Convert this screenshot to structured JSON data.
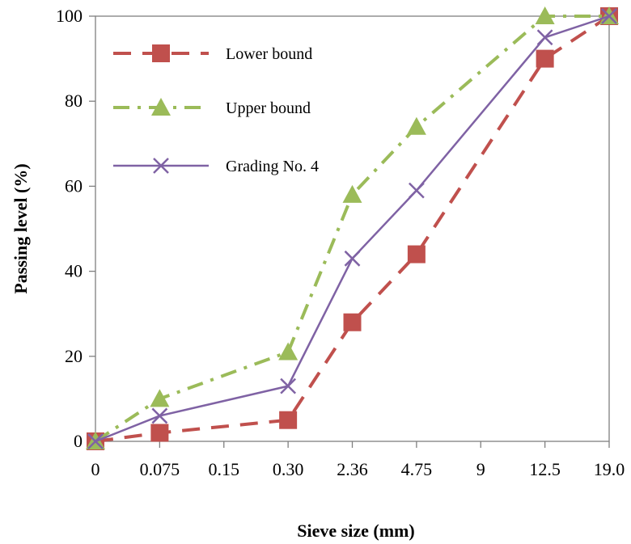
{
  "chart_data": {
    "type": "line",
    "xlabel": "Sieve size (mm)",
    "ylabel": "Passing level (%)",
    "x": [
      "0",
      "0.075",
      "0.15",
      "0.30",
      "2.36",
      "4.75",
      "9",
      "12.5",
      "19.0"
    ],
    "ylim": [
      0,
      100
    ],
    "yticks": [
      "0",
      "20",
      "40",
      "60",
      "80",
      "100"
    ],
    "grid": false,
    "legend_position": "top-left",
    "series": [
      {
        "name": "Lower bound",
        "color": "#c0504d",
        "line_style": "dashed",
        "marker": "square",
        "points": [
          {
            "x": "0",
            "y": 0
          },
          {
            "x": "0.075",
            "y": 2
          },
          {
            "x": "0.30",
            "y": 5
          },
          {
            "x": "2.36",
            "y": 28
          },
          {
            "x": "4.75",
            "y": 44
          },
          {
            "x": "12.5",
            "y": 90
          },
          {
            "x": "19.0",
            "y": 100
          }
        ]
      },
      {
        "name": "Upper bound",
        "color": "#9bbb59",
        "line_style": "dash-dot",
        "marker": "triangle",
        "points": [
          {
            "x": "0",
            "y": 0
          },
          {
            "x": "0.075",
            "y": 10
          },
          {
            "x": "0.30",
            "y": 21
          },
          {
            "x": "2.36",
            "y": 58
          },
          {
            "x": "4.75",
            "y": 74
          },
          {
            "x": "12.5",
            "y": 100
          },
          {
            "x": "19.0",
            "y": 100
          }
        ]
      },
      {
        "name": "Grading No. 4",
        "color": "#7f62a4",
        "line_style": "solid",
        "marker": "x",
        "points": [
          {
            "x": "0",
            "y": 0
          },
          {
            "x": "0.075",
            "y": 6
          },
          {
            "x": "0.30",
            "y": 13
          },
          {
            "x": "2.36",
            "y": 43
          },
          {
            "x": "4.75",
            "y": 59
          },
          {
            "x": "12.5",
            "y": 95
          },
          {
            "x": "19.0",
            "y": 100
          }
        ]
      }
    ]
  }
}
